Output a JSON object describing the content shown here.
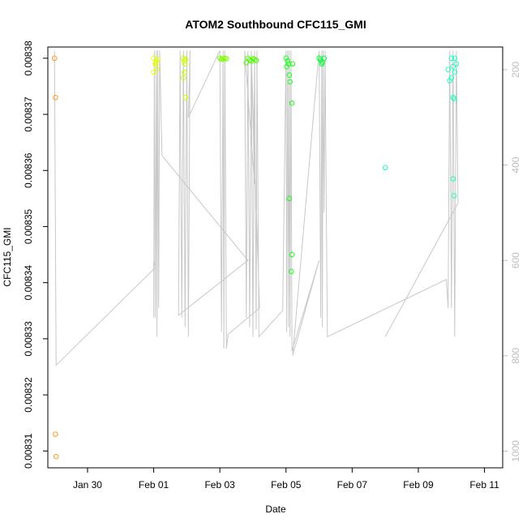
{
  "chart_data": {
    "type": "scatter",
    "title": "ATOM2 Southbound CFC115_GMI",
    "xlabel": "Date",
    "ylabel": "CFC115_GMI",
    "x_ticks": [
      "Jan 30",
      "Feb 01",
      "Feb 03",
      "Feb 05",
      "Feb 07",
      "Feb 09",
      "Feb 11"
    ],
    "x_tick_days": [
      1.0,
      3.0,
      5.0,
      7.0,
      9.0,
      11.0,
      13.0
    ],
    "xlim_days": [
      -0.2,
      13.55
    ],
    "ylim": [
      0.008307,
      0.008382
    ],
    "y_ticks": [
      0.00831,
      0.00832,
      0.00833,
      0.00834,
      0.00835,
      0.00836,
      0.00837,
      0.00838
    ],
    "y_tick_labels": [
      "0.00831",
      "0.00832",
      "0.00833",
      "0.00834",
      "0.00835",
      "0.00836",
      "0.00837",
      "0.00838"
    ],
    "right_axis": {
      "ticks": [
        200,
        400,
        600,
        800,
        1000
      ],
      "tick_labels": [
        "200",
        "400",
        "600",
        "800",
        "1000"
      ],
      "range": [
        152.5,
        1035
      ],
      "color": "#bdbdbd"
    },
    "grid": false,
    "points": [
      {
        "x": 0.0,
        "y": 0.00838,
        "color": "#ff9a1f"
      },
      {
        "x": 0.03,
        "y": 0.008373,
        "color": "#ff9a1f"
      },
      {
        "x": 0.03,
        "y": 0.008313,
        "color": "#ff9a1f"
      },
      {
        "x": 0.05,
        "y": 0.008309,
        "color": "#ff9a1f"
      },
      {
        "x": 3.0,
        "y": 0.00838,
        "color": "#e6ff00"
      },
      {
        "x": 3.05,
        "y": 0.008379,
        "color": "#e6ff00"
      },
      {
        "x": 3.08,
        "y": 0.0083795,
        "color": "#e6ff00"
      },
      {
        "x": 3.1,
        "y": 0.008378,
        "color": "#e6ff00"
      },
      {
        "x": 3.0,
        "y": 0.0083775,
        "color": "#e6ff00"
      },
      {
        "x": 3.12,
        "y": 0.0083798,
        "color": "#e6ff00"
      },
      {
        "x": 3.06,
        "y": 0.0083792,
        "color": "#e6ff00"
      },
      {
        "x": 3.9,
        "y": 0.00838,
        "color": "#ccff00"
      },
      {
        "x": 3.92,
        "y": 0.0083795,
        "color": "#ccff00"
      },
      {
        "x": 3.95,
        "y": 0.008379,
        "color": "#ccff00"
      },
      {
        "x": 3.93,
        "y": 0.0083775,
        "color": "#ccff00"
      },
      {
        "x": 3.9,
        "y": 0.0083765,
        "color": "#ccff00"
      },
      {
        "x": 3.96,
        "y": 0.008373,
        "color": "#ccff00"
      },
      {
        "x": 3.97,
        "y": 0.0083798,
        "color": "#ccff00"
      },
      {
        "x": 5.0,
        "y": 0.00838,
        "color": "#7fff00"
      },
      {
        "x": 5.05,
        "y": 0.0083798,
        "color": "#7fff00"
      },
      {
        "x": 5.1,
        "y": 0.0083799,
        "color": "#7fff00"
      },
      {
        "x": 5.15,
        "y": 0.00838,
        "color": "#7fff00"
      },
      {
        "x": 5.2,
        "y": 0.0083799,
        "color": "#7fff00"
      },
      {
        "x": 5.85,
        "y": 0.00838,
        "color": "#4cff00"
      },
      {
        "x": 5.9,
        "y": 0.0083797,
        "color": "#4cff00"
      },
      {
        "x": 5.95,
        "y": 0.0083795,
        "color": "#4cff00"
      },
      {
        "x": 6.0,
        "y": 0.0083799,
        "color": "#4cff00"
      },
      {
        "x": 6.05,
        "y": 0.0083798,
        "color": "#4cff00"
      },
      {
        "x": 6.1,
        "y": 0.0083796,
        "color": "#4cff00"
      },
      {
        "x": 5.8,
        "y": 0.0083792,
        "color": "#4cff00"
      },
      {
        "x": 7.0,
        "y": 0.00838,
        "color": "#19ff1a"
      },
      {
        "x": 7.05,
        "y": 0.0083795,
        "color": "#19ff1a"
      },
      {
        "x": 7.08,
        "y": 0.008379,
        "color": "#19ff1a"
      },
      {
        "x": 7.02,
        "y": 0.0083785,
        "color": "#19ff1a"
      },
      {
        "x": 7.1,
        "y": 0.008377,
        "color": "#19ff1a"
      },
      {
        "x": 7.12,
        "y": 0.0083758,
        "color": "#19ff1a"
      },
      {
        "x": 7.2,
        "y": 0.008379,
        "color": "#19ff1a"
      },
      {
        "x": 7.18,
        "y": 0.008372,
        "color": "#19ff1a"
      },
      {
        "x": 7.1,
        "y": 0.008355,
        "color": "#19ff1a"
      },
      {
        "x": 7.18,
        "y": 0.008345,
        "color": "#19ff1a"
      },
      {
        "x": 7.16,
        "y": 0.008342,
        "color": "#19ff1a"
      },
      {
        "x": 8.0,
        "y": 0.00838,
        "color": "#00ff33"
      },
      {
        "x": 8.05,
        "y": 0.0083797,
        "color": "#00ff33"
      },
      {
        "x": 8.1,
        "y": 0.0083793,
        "color": "#00ff33"
      },
      {
        "x": 8.15,
        "y": 0.00838,
        "color": "#00ff33"
      },
      {
        "x": 8.08,
        "y": 0.008379,
        "color": "#00ff33"
      },
      {
        "x": 12.0,
        "y": 0.00838,
        "color": "#1affbf"
      },
      {
        "x": 12.1,
        "y": 0.00838,
        "color": "#1affbf"
      },
      {
        "x": 11.9,
        "y": 0.008378,
        "color": "#1affbf"
      },
      {
        "x": 12.05,
        "y": 0.0083785,
        "color": "#1affbf"
      },
      {
        "x": 12.15,
        "y": 0.008379,
        "color": "#1affbf"
      },
      {
        "x": 12.0,
        "y": 0.0083765,
        "color": "#1affbf"
      },
      {
        "x": 11.95,
        "y": 0.008376,
        "color": "#1affbf"
      },
      {
        "x": 12.1,
        "y": 0.0083775,
        "color": "#1affbf"
      },
      {
        "x": 12.05,
        "y": 0.008373,
        "color": "#1affbf"
      },
      {
        "x": 12.08,
        "y": 0.0083728,
        "color": "#1affbf"
      },
      {
        "x": 10.0,
        "y": 0.0083605,
        "color": "#1affbf"
      },
      {
        "x": 12.05,
        "y": 0.0083585,
        "color": "#1affbf"
      },
      {
        "x": 12.08,
        "y": 0.0083555,
        "color": "#1affbf"
      }
    ],
    "altitude_line": [
      [
        0.0,
        160
      ],
      [
        0.05,
        820
      ],
      [
        3.05,
        615
      ],
      [
        3.0,
        600
      ],
      [
        3.0,
        720
      ],
      [
        3.02,
        160
      ],
      [
        3.05,
        720
      ],
      [
        3.08,
        160
      ],
      [
        3.1,
        760
      ],
      [
        3.12,
        160
      ],
      [
        3.15,
        700
      ],
      [
        3.18,
        160
      ],
      [
        3.25,
        380
      ],
      [
        5.85,
        600
      ],
      [
        3.75,
        715
      ],
      [
        3.8,
        160
      ],
      [
        3.85,
        720
      ],
      [
        3.9,
        160
      ],
      [
        3.95,
        740
      ],
      [
        4.0,
        160
      ],
      [
        4.05,
        760
      ],
      [
        4.1,
        160
      ],
      [
        4.05,
        300
      ],
      [
        5.0,
        160
      ],
      [
        5.05,
        750
      ],
      [
        5.1,
        160
      ],
      [
        5.12,
        785
      ],
      [
        5.15,
        160
      ],
      [
        5.2,
        785
      ],
      [
        5.25,
        755
      ],
      [
        6.2,
        700
      ],
      [
        5.95,
        160
      ],
      [
        6.05,
        440
      ],
      [
        5.75,
        160
      ],
      [
        5.8,
        720
      ],
      [
        5.85,
        160
      ],
      [
        5.9,
        740
      ],
      [
        5.95,
        160
      ],
      [
        6.0,
        760
      ],
      [
        6.05,
        160
      ],
      [
        6.1,
        745
      ],
      [
        6.12,
        160
      ],
      [
        6.15,
        430
      ],
      [
        6.18,
        760
      ],
      [
        6.9,
        705
      ],
      [
        7.0,
        160
      ],
      [
        7.02,
        750
      ],
      [
        7.05,
        160
      ],
      [
        7.08,
        740
      ],
      [
        7.1,
        160
      ],
      [
        7.12,
        760
      ],
      [
        7.15,
        160
      ],
      [
        7.18,
        790
      ],
      [
        8.0,
        600
      ],
      [
        7.2,
        800
      ],
      [
        8.0,
        160
      ],
      [
        8.05,
        720
      ],
      [
        8.08,
        160
      ],
      [
        8.1,
        740
      ],
      [
        8.12,
        160
      ],
      [
        8.15,
        500
      ],
      [
        8.18,
        160
      ],
      [
        8.25,
        760
      ],
      [
        11.85,
        640
      ],
      [
        11.9,
        700
      ],
      [
        11.95,
        160
      ],
      [
        12.0,
        700
      ],
      [
        12.05,
        160
      ],
      [
        12.1,
        760
      ],
      [
        12.15,
        160
      ],
      [
        12.2,
        480
      ],
      [
        10.0,
        760
      ]
    ],
    "line_color": "#c8c8c8"
  }
}
